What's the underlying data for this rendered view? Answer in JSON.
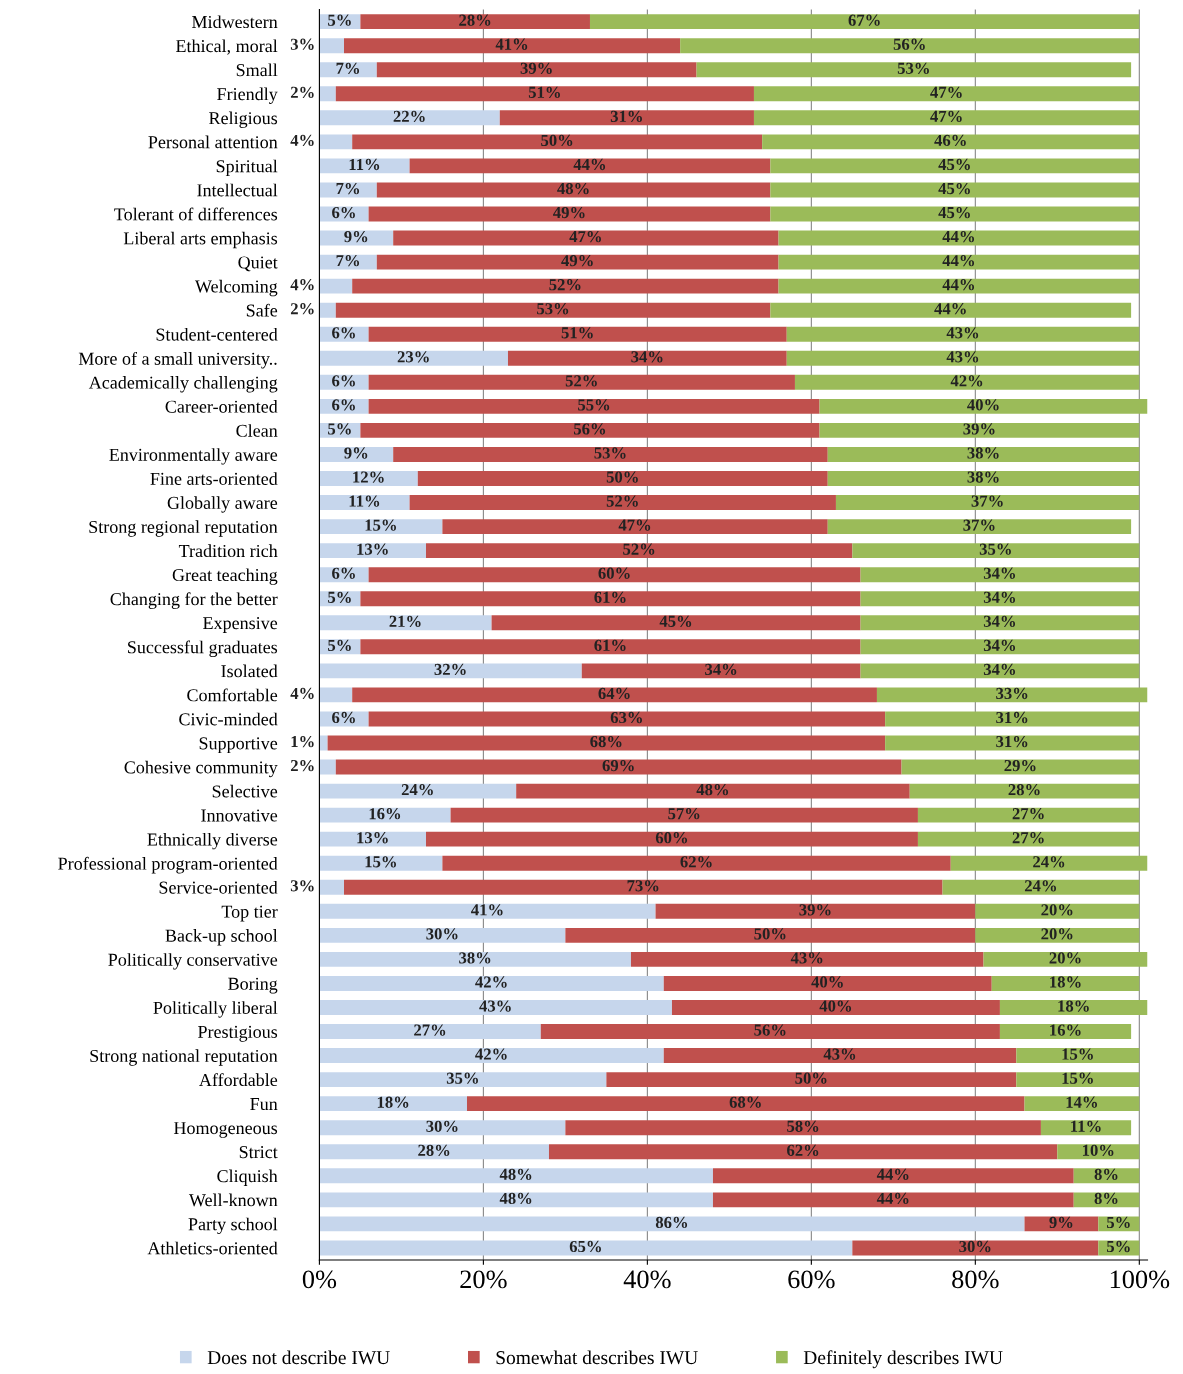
{
  "chart_data": {
    "type": "bar",
    "orientation": "horizontal",
    "stacked": true,
    "categories": [
      "Midwestern",
      "Ethical, moral",
      "Small",
      "Friendly",
      "Religious",
      "Personal attention",
      "Spiritual",
      "Intellectual",
      "Tolerant of differences",
      "Liberal arts emphasis",
      "Quiet",
      "Welcoming",
      "Safe",
      "Student-centered",
      "More of a small university..",
      "Academically challenging",
      "Career-oriented",
      "Clean",
      "Environmentally aware",
      "Fine arts-oriented",
      "Globally aware",
      "Strong regional reputation",
      "Tradition rich",
      "Great teaching",
      "Changing for the better",
      "Expensive",
      "Successful graduates",
      "Isolated",
      "Comfortable",
      "Civic-minded",
      "Supportive",
      "Cohesive community",
      "Selective",
      "Innovative",
      "Ethnically diverse",
      "Professional program-oriented",
      "Service-oriented",
      "Top tier",
      "Back-up school",
      "Politically conservative",
      "Boring",
      "Politically liberal",
      "Prestigious",
      "Strong national reputation",
      "Affordable",
      "Fun",
      "Homogeneous",
      "Strict",
      "Cliquish",
      "Well-known",
      "Party school",
      "Athletics-oriented"
    ],
    "series": [
      {
        "name": "Does not describe IWU",
        "color": "#c6d6ec",
        "values": [
          5,
          3,
          7,
          2,
          22,
          4,
          11,
          7,
          6,
          9,
          7,
          4,
          2,
          6,
          23,
          6,
          6,
          5,
          9,
          12,
          11,
          15,
          13,
          6,
          5,
          21,
          5,
          32,
          4,
          6,
          1,
          2,
          24,
          16,
          13,
          15,
          3,
          41,
          30,
          38,
          42,
          43,
          27,
          42,
          35,
          18,
          30,
          28,
          48,
          48,
          86,
          65
        ],
        "value_labels": [
          "5%",
          "3%",
          "7%",
          "2%",
          "22%",
          "4%",
          "11%",
          "7%",
          "6%",
          "9%",
          "7%",
          "4%",
          "2%",
          "6%",
          "23%",
          "6%",
          "6%",
          "5%",
          "9%",
          "12%",
          "11%",
          "15%",
          "13%",
          "6%",
          "5%",
          "21%",
          "5%",
          "32%",
          "4%",
          "6%",
          "1%",
          "2%",
          "24%",
          "16%",
          "13%",
          "15%",
          "3%",
          "41%",
          "30%",
          "38%",
          "42%",
          "43%",
          "27%",
          "42%",
          "35%",
          "18%",
          "30%",
          "28%",
          "48%",
          "48%",
          "86%",
          "65%"
        ]
      },
      {
        "name": "Somewhat describes IWU",
        "color": "#c0504d",
        "values": [
          28,
          41,
          39,
          51,
          31,
          50,
          44,
          48,
          49,
          47,
          49,
          52,
          53,
          51,
          34,
          52,
          55,
          56,
          53,
          50,
          52,
          47,
          52,
          60,
          61,
          45,
          61,
          34,
          64,
          63,
          68,
          69,
          48,
          57,
          60,
          62,
          73,
          39,
          50,
          43,
          40,
          40,
          56,
          43,
          50,
          68,
          58,
          62,
          44,
          44,
          9,
          30
        ],
        "value_labels": [
          "28%",
          "41%",
          "39%",
          "51%",
          "31%",
          "50%",
          "44%",
          "48%",
          "49%",
          "47%",
          "49%",
          "52%",
          "53%",
          "51%",
          "34%",
          "52%",
          "55%",
          "56%",
          "53%",
          "50%",
          "52%",
          "47%",
          "52%",
          "60%",
          "61%",
          "45%",
          "61%",
          "34%",
          "64%",
          "63%",
          "68%",
          "69%",
          "48%",
          "57%",
          "60%",
          "62%",
          "73%",
          "39%",
          "50%",
          "43%",
          "40%",
          "40%",
          "56%",
          "43%",
          "50%",
          "68%",
          "58%",
          "62%",
          "44%",
          "44%",
          "9%",
          "30%"
        ]
      },
      {
        "name": "Definitely describes IWU",
        "color": "#9bbb59",
        "values": [
          67,
          56,
          53,
          47,
          47,
          46,
          45,
          45,
          45,
          44,
          44,
          44,
          44,
          43,
          43,
          42,
          40,
          39,
          38,
          38,
          37,
          37,
          35,
          34,
          34,
          34,
          34,
          34,
          33,
          31,
          31,
          29,
          28,
          27,
          27,
          24,
          24,
          20,
          20,
          20,
          18,
          18,
          16,
          15,
          15,
          14,
          11,
          10,
          8,
          8,
          5,
          5
        ],
        "value_labels": [
          "67%",
          "56%",
          "53%",
          "47%",
          "47%",
          "46%",
          "45%",
          "45%",
          "45%",
          "44%",
          "44%",
          "44%",
          "44%",
          "43%",
          "43%",
          "42%",
          "40%",
          "39%",
          "38%",
          "38%",
          "37%",
          "37%",
          "35%",
          "34%",
          "34%",
          "34%",
          "34%",
          "34%",
          "33%",
          "31%",
          "31%",
          "29%",
          "28%",
          "27%",
          "27%",
          "24%",
          "24%",
          "20%",
          "20%",
          "20%",
          "18%",
          "18%",
          "16%",
          "15%",
          "15%",
          "14%",
          "11%",
          "10%",
          "8%",
          "8%",
          "5%",
          "5%"
        ]
      }
    ],
    "xlim": [
      0,
      101
    ],
    "xticks": [
      {
        "value": 0,
        "label": "0%"
      },
      {
        "value": 20,
        "label": "20%"
      },
      {
        "value": 40,
        "label": "40%"
      },
      {
        "value": 60,
        "label": "60%"
      },
      {
        "value": 80,
        "label": "80%"
      },
      {
        "value": 100,
        "label": "100%"
      }
    ],
    "grid": "x",
    "legend": "bottom"
  }
}
